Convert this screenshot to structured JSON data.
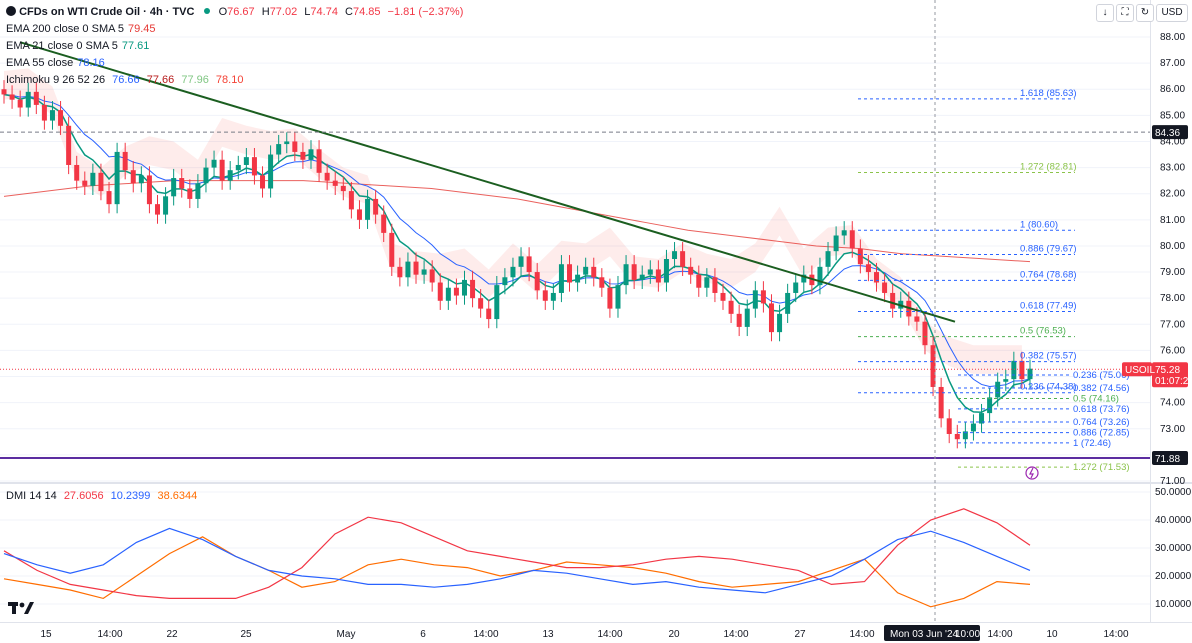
{
  "header": {
    "symbol": "CFDs on WTI Crude Oil · 4h · TVC",
    "o_label": "O",
    "o": "76.67",
    "h_label": "H",
    "h": "77.02",
    "l_label": "L",
    "l": "74.74",
    "c_label": "C",
    "c": "74.85",
    "change": "−1.81 (−2.37%)"
  },
  "toolbar": {
    "down": "↓",
    "expand": "⛶",
    "refresh": "↻",
    "currency": "USD"
  },
  "indicators": [
    {
      "label": "EMA 200 close 0 SMA 5",
      "value": "79.45",
      "color": "#e53935"
    },
    {
      "label": "EMA 21 close 0 SMA 5",
      "value": "77.61",
      "color": "#089981"
    },
    {
      "label": "EMA 55 close",
      "value": "78.16",
      "color": "#2962ff"
    },
    {
      "label": "Ichimoku 9 26 52 26",
      "values": [
        "76.66",
        "77.66",
        "77.96",
        "78.10"
      ],
      "colors": [
        "#2962ff",
        "#b71c1c",
        "#81c784",
        "#f44336"
      ]
    }
  ],
  "dmi": {
    "label": "DMI 14 14",
    "values": [
      "27.6056",
      "10.2399",
      "38.6344"
    ],
    "colors": [
      "#f23645",
      "#2962ff",
      "#ff6d00"
    ]
  },
  "symbol_badge": "USOIL",
  "price_badge": "75.28",
  "countdown_badge": "01:07:22",
  "level_8436": "84.36",
  "level_7188": "71.88",
  "crosshair_date": "Mon 03 Jun '24",
  "crosshair_time": "10:00",
  "colors": {
    "up": "#089981",
    "down": "#f23645",
    "trendline": "#1b5e20",
    "support": "#5b2ca0",
    "fib": "#2962ff"
  },
  "chart_data": {
    "type": "candlestick",
    "price_axis": {
      "range": [
        71,
        88.5
      ],
      "ticks": [
        "88.00",
        "87.00",
        "86.00",
        "85.00",
        "84.00",
        "83.00",
        "82.00",
        "81.00",
        "80.00",
        "79.00",
        "78.00",
        "77.00",
        "76.00",
        "75.00",
        "74.00",
        "73.00",
        "72.00",
        "71.00"
      ]
    },
    "dmi_axis": {
      "range": [
        5,
        50
      ],
      "ticks": [
        "50.0000",
        "40.0000",
        "30.0000",
        "20.0000",
        "10.0000"
      ]
    },
    "time_ticks": [
      "15",
      "14:00",
      "22",
      "25",
      "May",
      "6",
      "14:00",
      "13",
      "14:00",
      "20",
      "14:00",
      "27",
      "14:00",
      "14:00",
      "10",
      "14:00"
    ],
    "candles_close": [
      85.8,
      85.6,
      85.3,
      85.9,
      85.4,
      84.8,
      85.2,
      84.6,
      83.1,
      82.5,
      82.3,
      82.8,
      82.1,
      81.6,
      83.6,
      82.9,
      82.4,
      82.7,
      81.6,
      81.2,
      81.9,
      82.6,
      82.2,
      81.8,
      82.4,
      83.0,
      83.3,
      82.5,
      82.9,
      83.1,
      83.4,
      82.7,
      82.2,
      83.5,
      83.9,
      84.0,
      83.6,
      83.3,
      83.7,
      82.8,
      82.5,
      82.3,
      82.1,
      81.4,
      81.0,
      81.8,
      81.2,
      80.5,
      79.2,
      78.8,
      79.4,
      78.9,
      79.1,
      78.6,
      77.9,
      78.4,
      78.1,
      78.7,
      78.0,
      77.6,
      77.2,
      78.5,
      78.8,
      79.2,
      79.6,
      79.0,
      78.3,
      77.9,
      78.2,
      79.3,
      78.6,
      78.9,
      79.2,
      78.8,
      78.4,
      77.6,
      78.5,
      79.3,
      78.7,
      78.9,
      79.1,
      78.6,
      79.5,
      79.8,
      79.2,
      78.9,
      78.4,
      78.8,
      78.2,
      77.9,
      77.4,
      76.9,
      77.6,
      78.3,
      77.8,
      76.7,
      77.4,
      78.2,
      78.6,
      78.9,
      78.5,
      79.2,
      79.8,
      80.4,
      80.6,
      79.9,
      79.3,
      79.0,
      78.6,
      78.2,
      77.6,
      77.9,
      77.3,
      77.1,
      76.2,
      74.6,
      73.4,
      72.8,
      72.6,
      72.9,
      73.2,
      73.6,
      74.2,
      74.8,
      74.9,
      75.6,
      74.9,
      75.3
    ]
  },
  "trendline": {
    "from": {
      "x": "15",
      "price": 87.8
    },
    "to": {
      "x": "Mon 03 Jun '24",
      "price": 77.1
    }
  },
  "fib_upper": [
    {
      "label": "1.618 (85.63)",
      "price": 85.63,
      "color": "#2962ff"
    },
    {
      "label": "1.272 (82.81)",
      "price": 82.81,
      "color": "#8bc34a"
    },
    {
      "label": "1 (80.60)",
      "price": 80.6,
      "color": "#2962ff"
    },
    {
      "label": "0.886 (79.67)",
      "price": 79.67,
      "color": "#2962ff"
    },
    {
      "label": "0.764 (78.68)",
      "price": 78.68,
      "color": "#2962ff"
    },
    {
      "label": "0.618 (77.49)",
      "price": 77.49,
      "color": "#2962ff"
    },
    {
      "label": "0.5 (76.53)",
      "price": 76.53,
      "color": "#4caf50"
    },
    {
      "label": "0.382 (75.57)",
      "price": 75.57,
      "color": "#2962ff"
    },
    {
      "label": "0.236 (74.38)",
      "price": 74.38,
      "color": "#2962ff"
    }
  ],
  "fib_lower": [
    {
      "label": "0.236 (75.06)",
      "price": 75.06,
      "color": "#2962ff"
    },
    {
      "label": "0.382 (74.56)",
      "price": 74.56,
      "color": "#2962ff"
    },
    {
      "label": "0.5 (74.16)",
      "price": 74.16,
      "color": "#4caf50"
    },
    {
      "label": "0.618 (73.76)",
      "price": 73.76,
      "color": "#2962ff"
    },
    {
      "label": "0.764 (73.26)",
      "price": 73.26,
      "color": "#2962ff"
    },
    {
      "label": "0.886 (72.85)",
      "price": 72.85,
      "color": "#2962ff"
    },
    {
      "label": "1 (72.46)",
      "price": 72.46,
      "color": "#2962ff"
    },
    {
      "label": "1.272 (71.53)",
      "price": 71.53,
      "color": "#8bc34a"
    }
  ],
  "ema200": [
    81.9,
    82.1,
    82.3,
    82.4,
    82.5,
    82.5,
    82.5,
    82.5,
    82.4,
    82.3,
    82.2,
    82.0,
    81.8,
    81.5,
    81.2,
    80.9,
    80.6,
    80.4,
    80.2,
    80.0,
    79.9,
    79.7,
    79.6,
    79.5,
    79.4
  ],
  "dmi_plus": [
    28,
    24,
    21,
    24,
    32,
    37,
    33,
    27,
    22,
    20,
    19,
    17,
    17,
    16,
    17,
    19,
    22,
    21,
    19,
    17,
    18,
    16,
    15,
    14,
    17,
    20,
    26,
    33,
    36,
    32,
    27,
    22
  ],
  "dmi_minus": [
    29,
    22,
    17,
    15,
    13,
    12,
    12,
    12,
    16,
    23,
    35,
    41,
    39,
    34,
    29,
    27,
    25,
    23,
    23,
    24,
    26,
    27,
    26,
    24,
    22,
    17,
    18,
    31,
    40,
    44,
    39,
    31
  ],
  "adx": [
    19,
    17,
    15,
    12,
    20,
    28,
    34,
    27,
    22,
    16,
    18,
    24,
    26,
    24,
    23,
    20,
    22,
    25,
    24,
    23,
    21,
    18,
    16,
    17,
    18,
    22,
    26,
    14,
    9,
    12,
    18,
    17
  ]
}
